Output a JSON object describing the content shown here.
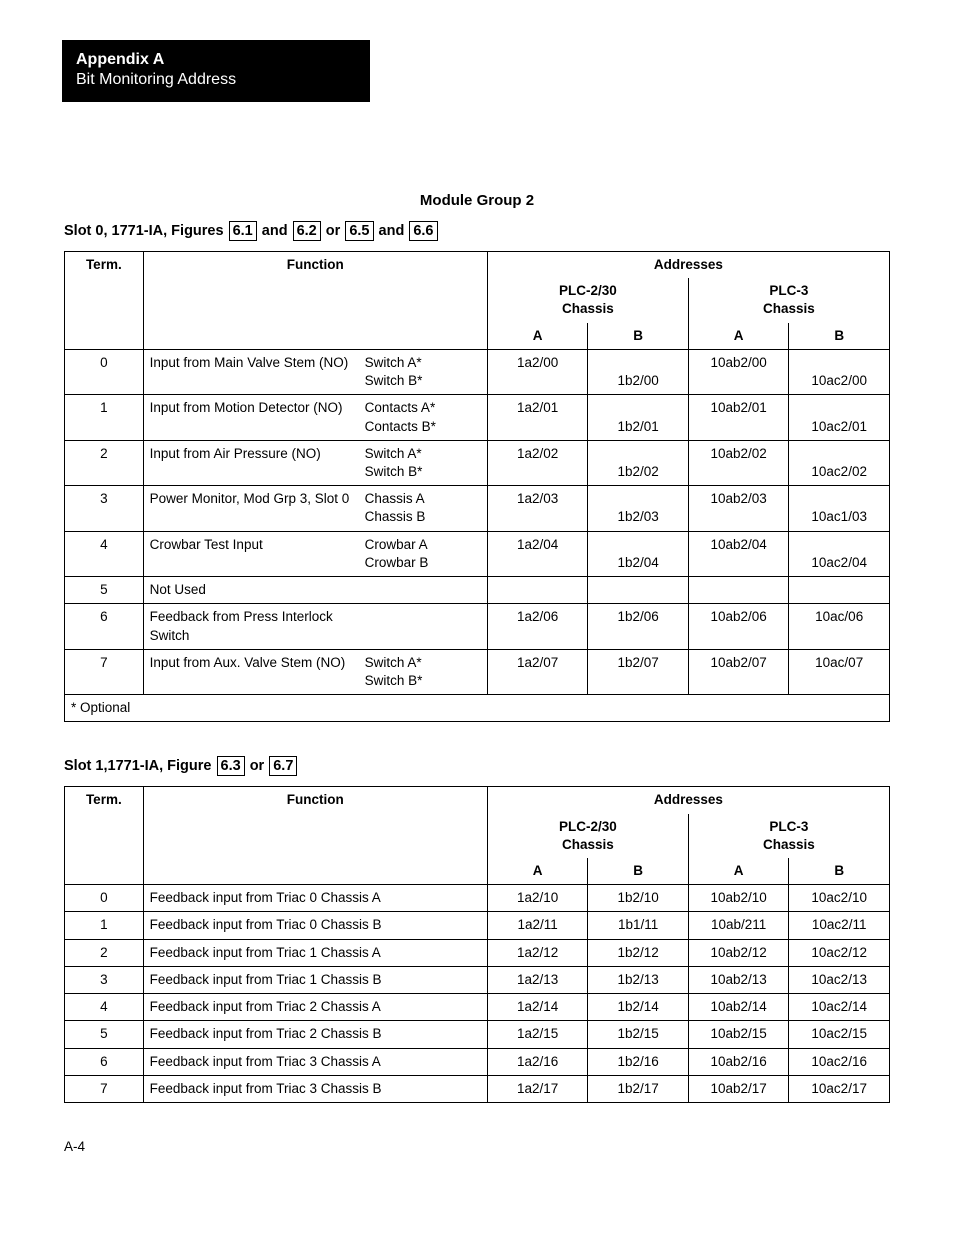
{
  "header": {
    "title_bold": "Appendix A",
    "title_reg": "Bit Monitoring Address"
  },
  "module_title": "Module Group 2",
  "page_number": "A-4",
  "slot0": {
    "heading_prefix": "Slot 0, 1771-IA, Figures ",
    "links": [
      "6.1",
      "6.2",
      "6.5",
      "6.6"
    ],
    "connectors": [
      " and ",
      " or ",
      " and "
    ],
    "addresses_label": "Addresses",
    "term_label": "Term.",
    "function_label": "Function",
    "plc230_label": "PLC-2/30",
    "plc3_label": "PLC-3",
    "chassis_label": "Chassis",
    "a_label": "A",
    "b_label": "B",
    "optional_note": "*  Optional",
    "rows": [
      {
        "term": "0",
        "func": "Input from Main Valve Stem (NO)",
        "sw_a": "Switch A*",
        "sw_b": "Switch B*",
        "p2a": "1a2/00",
        "p2b": "1b2/00",
        "p3a": "10ab2/00",
        "p3b": "10ac2/00",
        "two_line": true
      },
      {
        "term": "1",
        "func": "Input from Motion Detector (NO)",
        "sw_a": "Contacts A*",
        "sw_b": "Contacts B*",
        "p2a": "1a2/01",
        "p2b": "1b2/01",
        "p3a": "10ab2/01",
        "p3b": "10ac2/01",
        "two_line": true
      },
      {
        "term": "2",
        "func": "Input from Air Pressure (NO)",
        "sw_a": "Switch A*",
        "sw_b": "Switch B*",
        "p2a": "1a2/02",
        "p2b": "1b2/02",
        "p3a": "10ab2/02",
        "p3b": "10ac2/02",
        "two_line": true
      },
      {
        "term": "3",
        "func": "Power Monitor, Mod Grp 3, Slot 0",
        "sw_a": "Chassis A",
        "sw_b": "Chassis B",
        "p2a": "1a2/03",
        "p2b": "1b2/03",
        "p3a": "10ab2/03",
        "p3b": "10ac1/03",
        "two_line": true
      },
      {
        "term": "4",
        "func": "Crowbar Test Input",
        "sw_a": "Crowbar A",
        "sw_b": "Crowbar B",
        "p2a": "1a2/04",
        "p2b": "1b2/04",
        "p3a": "10ab2/04",
        "p3b": "10ac2/04",
        "two_line": true
      },
      {
        "term": "5",
        "func": "Not Used",
        "sw_a": "",
        "sw_b": "",
        "p2a": "",
        "p2b": "",
        "p3a": "",
        "p3b": "",
        "two_line": false
      },
      {
        "term": "6",
        "func": "Feedback from Press Interlock Switch",
        "sw_a": "",
        "sw_b": "",
        "p2a": "1a2/06",
        "p2b": "1b2/06",
        "p3a": "10ab2/06",
        "p3b": "10ac/06",
        "two_line": false
      },
      {
        "term": "7",
        "func": "Input from Aux. Valve Stem (NO)",
        "sw_a": "Switch A*",
        "sw_b": "Switch B*",
        "p2a": "1a2/07",
        "p2b": "1b2/07",
        "p3a": "10ab2/07",
        "p3b": "10ac/07",
        "two_line": false
      }
    ]
  },
  "slot1": {
    "heading_prefix": "Slot 1,1771-IA, Figure ",
    "links": [
      "6.3",
      "6.7"
    ],
    "connectors": [
      " or "
    ],
    "addresses_label": "Addresses",
    "term_label": "Term.",
    "function_label": "Function",
    "plc230_label": "PLC-2/30",
    "plc3_label": "PLC-3",
    "chassis_label": "Chassis",
    "a_label": "A",
    "b_label": "B",
    "rows": [
      {
        "term": "0",
        "func": "Feedback input from Triac 0 Chassis A",
        "p2a": "1a2/10",
        "p2b": "1b2/10",
        "p3a": "10ab2/10",
        "p3b": "10ac2/10"
      },
      {
        "term": "1",
        "func": "Feedback input from Triac 0 Chassis B",
        "p2a": "1a2/11",
        "p2b": "1b1/11",
        "p3a": "10ab/211",
        "p3b": "10ac2/11"
      },
      {
        "term": "2",
        "func": "Feedback input from Triac 1 Chassis A",
        "p2a": "1a2/12",
        "p2b": "1b2/12",
        "p3a": "10ab2/12",
        "p3b": "10ac2/12"
      },
      {
        "term": "3",
        "func": "Feedback input from Triac 1 Chassis B",
        "p2a": "1a2/13",
        "p2b": "1b2/13",
        "p3a": "10ab2/13",
        "p3b": "10ac2/13"
      },
      {
        "term": "4",
        "func": "Feedback input from Triac 2 Chassis A",
        "p2a": "1a2/14",
        "p2b": "1b2/14",
        "p3a": "10ab2/14",
        "p3b": "10ac2/14"
      },
      {
        "term": "5",
        "func": "Feedback input from Triac 2 Chassis B",
        "p2a": "1a2/15",
        "p2b": "1b2/15",
        "p3a": "10ab2/15",
        "p3b": "10ac2/15"
      },
      {
        "term": "6",
        "func": "Feedback input from Triac 3 Chassis A",
        "p2a": "1a2/16",
        "p2b": "1b2/16",
        "p3a": "10ab2/16",
        "p3b": "10ac2/16"
      },
      {
        "term": "7",
        "func": "Feedback input from Triac 3 Chassis B",
        "p2a": "1a2/17",
        "p2b": "1b2/17",
        "p3a": "10ab2/17",
        "p3b": "10ac2/17"
      }
    ]
  }
}
